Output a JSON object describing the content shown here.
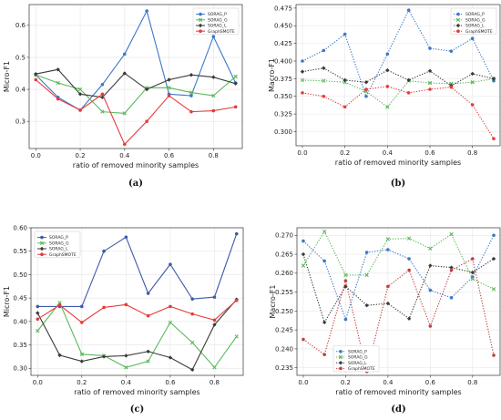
{
  "chart_data": [
    {
      "id": "a",
      "type": "line",
      "caption": "(a)",
      "xlabel": "ratio of removed minority samples",
      "ylabel": "Micro-F1",
      "x": [
        0.0,
        0.1,
        0.2,
        0.3,
        0.4,
        0.5,
        0.6,
        0.7,
        0.8,
        0.9
      ],
      "xlim": [
        -0.03,
        0.93
      ],
      "ylim": [
        0.215,
        0.665
      ],
      "xticks": [
        0.0,
        0.2,
        0.4,
        0.6,
        0.8
      ],
      "xtick_labels": [
        "0.0",
        "0.2",
        "0.4",
        "0.6",
        "0.8"
      ],
      "yticks": [
        0.3,
        0.4,
        0.5,
        0.6
      ],
      "ytick_labels": [
        "0.3",
        "0.4",
        "0.5",
        "0.6"
      ],
      "legend": {
        "position": "top-right",
        "fontSize": 4.5
      },
      "series": [
        {
          "name": "SORAG_P",
          "color": "#3c78c8",
          "dash": "solid",
          "marker": "circle",
          "values": [
            0.445,
            0.375,
            0.335,
            0.415,
            0.51,
            0.645,
            0.385,
            0.38,
            0.565,
            0.42
          ]
        },
        {
          "name": "SORAG_G",
          "color": "#5cb85c",
          "dash": "solid",
          "marker": "x",
          "values": [
            0.445,
            0.42,
            0.4,
            0.33,
            0.325,
            0.405,
            0.405,
            0.39,
            0.38,
            0.44
          ]
        },
        {
          "name": "SORAG_L",
          "color": "#3a3a3a",
          "dash": "solid",
          "marker": "diamond",
          "values": [
            0.448,
            0.462,
            0.385,
            0.375,
            0.45,
            0.4,
            0.43,
            0.445,
            0.438,
            0.418
          ]
        },
        {
          "name": "GraphSMOTE",
          "color": "#e83a3a",
          "dash": "solid",
          "marker": "circle",
          "values": [
            0.43,
            0.37,
            0.335,
            0.385,
            0.228,
            0.3,
            0.38,
            0.33,
            0.333,
            0.345
          ]
        }
      ]
    },
    {
      "id": "b",
      "type": "line",
      "caption": "(b)",
      "xlabel": "ratio of removed minority samples",
      "ylabel": "Macro-F1",
      "x": [
        0.0,
        0.1,
        0.2,
        0.3,
        0.4,
        0.5,
        0.6,
        0.7,
        0.8,
        0.9
      ],
      "xlim": [
        -0.03,
        0.93
      ],
      "ylim": [
        0.28,
        0.48
      ],
      "xticks": [
        0.0,
        0.2,
        0.4,
        0.6,
        0.8
      ],
      "xtick_labels": [
        "0.0",
        "0.2",
        "0.4",
        "0.6",
        "0.8"
      ],
      "yticks": [
        0.3,
        0.325,
        0.35,
        0.375,
        0.4,
        0.425,
        0.45,
        0.475
      ],
      "ytick_labels": [
        "0.300",
        "0.325",
        "0.350",
        "0.375",
        "0.400",
        "0.425",
        "0.450",
        "0.475"
      ],
      "legend": {
        "position": "top-right",
        "fontSize": 4.5
      },
      "series": [
        {
          "name": "SORAG_P",
          "color": "#3c78c8",
          "dash": "dotted",
          "marker": "circle",
          "values": [
            0.4,
            0.415,
            0.438,
            0.35,
            0.41,
            0.472,
            0.418,
            0.414,
            0.432,
            0.372
          ]
        },
        {
          "name": "SORAG_G",
          "color": "#5cb85c",
          "dash": "dotted",
          "marker": "x",
          "values": [
            0.373,
            0.372,
            0.37,
            0.357,
            0.335,
            0.372,
            0.369,
            0.368,
            0.37,
            0.375
          ]
        },
        {
          "name": "SORAG_L",
          "color": "#3a3a3a",
          "dash": "dotted",
          "marker": "diamond",
          "values": [
            0.385,
            0.39,
            0.373,
            0.37,
            0.387,
            0.373,
            0.386,
            0.365,
            0.382,
            0.375
          ]
        },
        {
          "name": "GraphSMOTE",
          "color": "#e83a3a",
          "dash": "dotted",
          "marker": "circle",
          "values": [
            0.355,
            0.35,
            0.335,
            0.36,
            0.364,
            0.355,
            0.36,
            0.363,
            0.338,
            0.29
          ]
        }
      ]
    },
    {
      "id": "c",
      "type": "line",
      "caption": "(c)",
      "xlabel": "ratio of removed minority samples",
      "ylabel": "Micro-F1",
      "x": [
        0.0,
        0.1,
        0.2,
        0.3,
        0.4,
        0.5,
        0.6,
        0.7,
        0.8,
        0.9
      ],
      "xlim": [
        -0.03,
        0.93
      ],
      "ylim": [
        0.285,
        0.6
      ],
      "xticks": [
        0.0,
        0.2,
        0.4,
        0.6,
        0.8
      ],
      "xtick_labels": [
        "0.0",
        "0.2",
        "0.4",
        "0.6",
        "0.8"
      ],
      "yticks": [
        0.3,
        0.35,
        0.4,
        0.45,
        0.5,
        0.55,
        0.6
      ],
      "ytick_labels": [
        "0.30",
        "0.35",
        "0.40",
        "0.45",
        "0.50",
        "0.55",
        "0.60"
      ],
      "legend": {
        "position": "top-left",
        "fontSize": 4.5
      },
      "series": [
        {
          "name": "SORAG_P",
          "color": "#3c5aa8",
          "dash": "solid",
          "marker": "circle",
          "values": [
            0.432,
            0.432,
            0.432,
            0.55,
            0.58,
            0.46,
            0.522,
            0.448,
            0.452,
            0.587
          ]
        },
        {
          "name": "SORAG_G",
          "color": "#5cb85c",
          "dash": "solid",
          "marker": "x",
          "values": [
            0.38,
            0.44,
            0.33,
            0.327,
            0.302,
            0.315,
            0.398,
            0.355,
            0.302,
            0.368
          ]
        },
        {
          "name": "SORAG_L",
          "color": "#3a3a3a",
          "dash": "solid",
          "marker": "diamond",
          "values": [
            0.418,
            0.328,
            0.315,
            0.325,
            0.327,
            0.336,
            0.323,
            0.297,
            0.393,
            0.447
          ]
        },
        {
          "name": "GraphSMOTE",
          "color": "#e83a3a",
          "dash": "solid",
          "marker": "circle",
          "values": [
            0.405,
            0.435,
            0.398,
            0.43,
            0.436,
            0.412,
            0.432,
            0.416,
            0.403,
            0.445
          ]
        }
      ]
    },
    {
      "id": "d",
      "type": "line",
      "caption": "(d)",
      "xlabel": "ratio of removed minority samples",
      "ylabel": "Macro-F1",
      "x": [
        0.0,
        0.1,
        0.2,
        0.3,
        0.4,
        0.5,
        0.6,
        0.7,
        0.8,
        0.9
      ],
      "xlim": [
        -0.03,
        0.93
      ],
      "ylim": [
        0.233,
        0.272
      ],
      "xticks": [
        0.0,
        0.2,
        0.4,
        0.6,
        0.8
      ],
      "xtick_labels": [
        "0.0",
        "0.2",
        "0.4",
        "0.6",
        "0.8"
      ],
      "yticks": [
        0.235,
        0.24,
        0.245,
        0.25,
        0.255,
        0.26,
        0.265,
        0.27
      ],
      "ytick_labels": [
        "0.235",
        "0.240",
        "0.245",
        "0.250",
        "0.255",
        "0.260",
        "0.265",
        "0.270"
      ],
      "legend": {
        "position": "bottom-left",
        "fontSize": 4.5
      },
      "series": [
        {
          "name": "SORAG_P",
          "color": "#3c78c8",
          "dash": "dotted",
          "marker": "circle",
          "values": [
            0.2685,
            0.2632,
            0.2478,
            0.2655,
            0.2662,
            0.2638,
            0.2555,
            0.2535,
            0.259,
            0.27
          ]
        },
        {
          "name": "SORAG_G",
          "color": "#5cb85c",
          "dash": "dotted",
          "marker": "x",
          "values": [
            0.262,
            0.271,
            0.2595,
            0.2595,
            0.269,
            0.2692,
            0.2665,
            0.2703,
            0.2585,
            0.2558
          ]
        },
        {
          "name": "SORAG_L",
          "color": "#3a3a3a",
          "dash": "dotted",
          "marker": "diamond",
          "values": [
            0.265,
            0.247,
            0.2565,
            0.2515,
            0.252,
            0.248,
            0.262,
            0.2615,
            0.2602,
            0.2638
          ]
        },
        {
          "name": "GraphSMOTE",
          "color": "#c04040",
          "dash": "dotted",
          "marker": "circle",
          "values": [
            0.2425,
            0.2385,
            0.258,
            0.234,
            0.2565,
            0.2608,
            0.246,
            0.2608,
            0.2638,
            0.2383
          ]
        }
      ]
    }
  ]
}
